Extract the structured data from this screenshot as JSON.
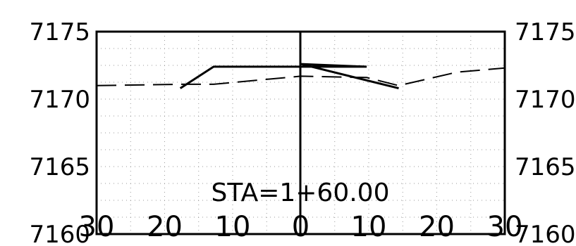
{
  "chart_data": {
    "type": "line",
    "title": "STA=1+60.00",
    "x_ticks": [
      "30",
      "20",
      "10",
      "0",
      "10",
      "20",
      "30"
    ],
    "y_ticks": [
      "7160",
      "7165",
      "7170",
      "7175"
    ],
    "xlim": [
      -30,
      30
    ],
    "ylim": [
      7160,
      7175
    ],
    "grid": true,
    "series": [
      {
        "style": "solid",
        "points": [
          [
            -17.7,
            7170.8
          ],
          [
            -12.8,
            7172.4
          ],
          [
            9.7,
            7172.4
          ],
          [
            0,
            7172.6
          ],
          [
            14.4,
            7170.8
          ]
        ]
      },
      {
        "style": "dashed",
        "points": [
          [
            -30,
            7171.0
          ],
          [
            -17.7,
            7171.1
          ],
          [
            -12.8,
            7171.1
          ],
          [
            0,
            7171.7
          ],
          [
            9.7,
            7171.6
          ],
          [
            14.4,
            7171.0
          ],
          [
            23,
            7172.0
          ],
          [
            30,
            7172.3
          ]
        ]
      }
    ]
  },
  "colors": {
    "line": "#000000",
    "grid": "#9a9a9a",
    "background": "#ffffff"
  }
}
